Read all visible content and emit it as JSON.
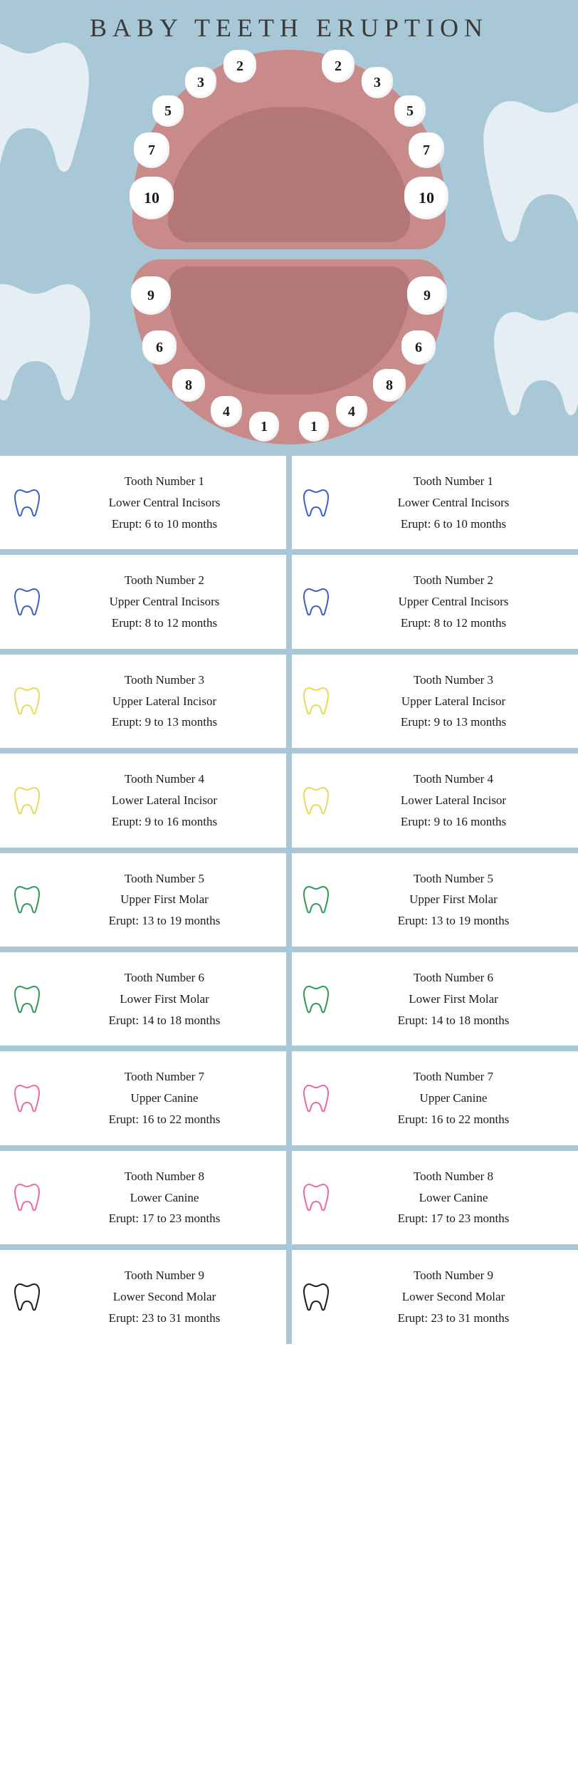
{
  "title": "BABY TEETH ERUPTION",
  "colors": {
    "background_blue": "#a8c8d8",
    "gum": "#c98a8a",
    "gum_inner": "#b47777",
    "tooth_white": "#ffffff",
    "title_text": "#3a3a3a",
    "body_text": "#1a1a1a",
    "icon_blue": "#3b5fc4",
    "icon_yellow": "#e8d95a",
    "icon_green": "#2e9a5a",
    "icon_pink": "#e86aa8",
    "icon_black": "#1a1a1a"
  },
  "typography": {
    "title_fontsize": 36,
    "title_letter_spacing": 8,
    "body_fontsize": 17,
    "font_family": "Georgia, serif"
  },
  "upper_teeth_labels": {
    "l5": "10",
    "l4": "7",
    "l3": "5",
    "l2": "3",
    "l1": "2",
    "r1": "2",
    "r2": "3",
    "r3": "5",
    "r4": "7",
    "r5": "10"
  },
  "lower_teeth_labels": {
    "l5": "9",
    "l4": "6",
    "l3": "8",
    "l2": "4",
    "l1": "1",
    "r1": "1",
    "r2": "4",
    "r3": "8",
    "r4": "6",
    "r5": "9"
  },
  "rows": [
    {
      "icon_color": "#3b5fc4",
      "number": "Tooth Number 1",
      "name": "Lower Central Incisors",
      "erupt": "Erupt: 6 to 10 months"
    },
    {
      "icon_color": "#3b5fc4",
      "number": "Tooth Number 2",
      "name": "Upper Central Incisors",
      "erupt": "Erupt: 8 to 12 months"
    },
    {
      "icon_color": "#e8d95a",
      "number": "Tooth Number 3",
      "name": "Upper Lateral Incisor",
      "erupt": "Erupt: 9 to 13 months"
    },
    {
      "icon_color": "#e8d95a",
      "number": "Tooth Number 4",
      "name": "Lower Lateral Incisor",
      "erupt": "Erupt: 9 to 16 months"
    },
    {
      "icon_color": "#2e9a5a",
      "number": "Tooth Number 5",
      "name": "Upper First Molar",
      "erupt": "Erupt: 13 to 19 months"
    },
    {
      "icon_color": "#2e9a5a",
      "number": "Tooth Number 6",
      "name": "Lower First Molar",
      "erupt": "Erupt: 14 to 18 months"
    },
    {
      "icon_color": "#e86aa8",
      "number": "Tooth Number 7",
      "name": "Upper Canine",
      "erupt": "Erupt: 16 to 22 months"
    },
    {
      "icon_color": "#e86aa8",
      "number": "Tooth Number 8",
      "name": "Lower Canine",
      "erupt": "Erupt: 17 to 23 months"
    },
    {
      "icon_color": "#1a1a1a",
      "number": "Tooth Number 9",
      "name": "Lower Second Molar",
      "erupt": "Erupt: 23 to 31 months"
    }
  ]
}
